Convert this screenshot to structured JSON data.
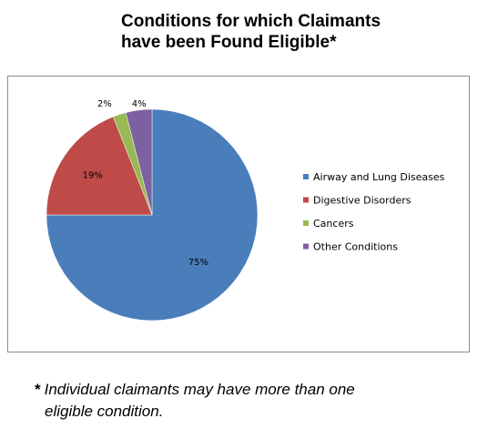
{
  "title": {
    "line1": "Conditions for which Claimants",
    "line2": "have been Found Eligible*"
  },
  "footnote": {
    "marker": "*",
    "line1": "Individual claimants may have more than one",
    "line2": "eligible condition."
  },
  "chart_data": {
    "type": "pie",
    "title": "Conditions for which Claimants have been Found Eligible*",
    "slices": [
      {
        "label": "Airway and Lung Diseases",
        "value": 75,
        "display": "75%",
        "color": "#4a7ebb"
      },
      {
        "label": "Digestive Disorders",
        "value": 19,
        "display": "19%",
        "color": "#be4b48"
      },
      {
        "label": "Cancers",
        "value": 2,
        "display": "2%",
        "color": "#98b954"
      },
      {
        "label": "Other Conditions",
        "value": 4,
        "display": "4%",
        "color": "#7d60a0"
      }
    ],
    "legend_position": "right",
    "data_labels": true
  }
}
